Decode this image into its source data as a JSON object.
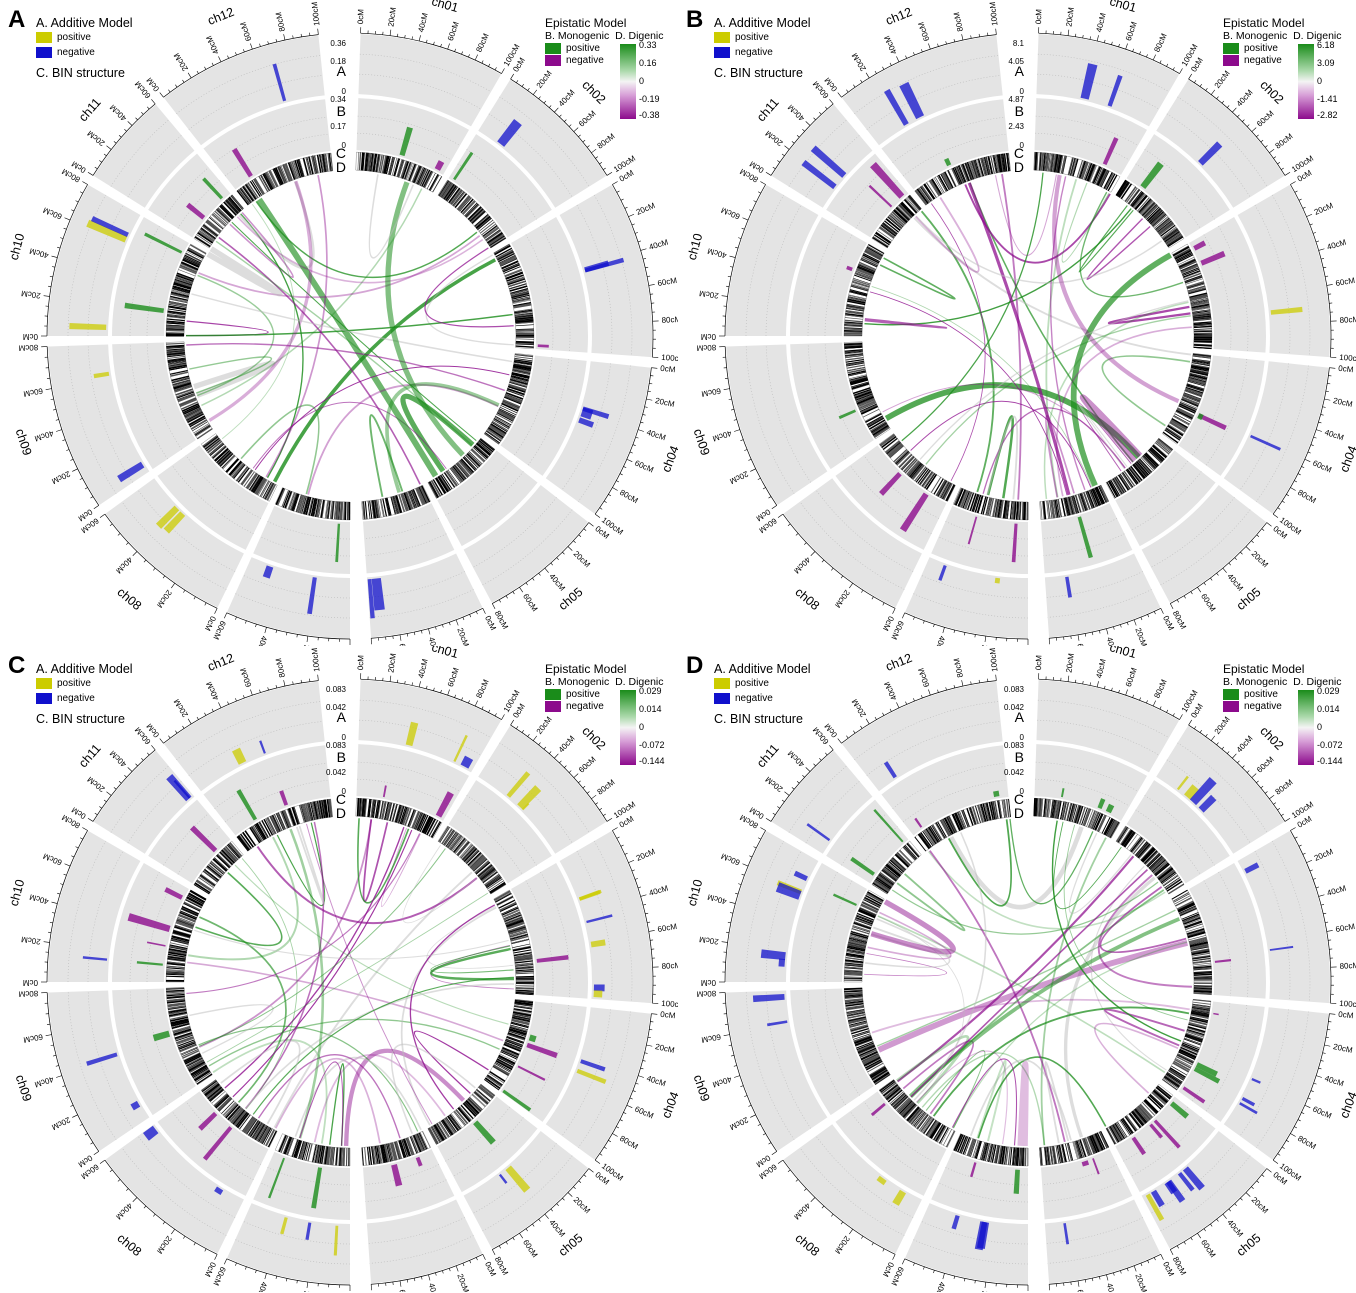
{
  "panels": [
    {
      "letter": "A",
      "track_a_max": "0.36",
      "track_a_mid": "0.18",
      "track_b_max": "0.34",
      "track_b_mid": "0.17",
      "digenic_scale": [
        "0.33",
        "0.16",
        "0",
        "-0.19",
        "-0.38"
      ]
    },
    {
      "letter": "B",
      "track_a_max": "8.1",
      "track_a_mid": "4.05",
      "track_b_max": "4.87",
      "track_b_mid": "2.43",
      "digenic_scale": [
        "6.18",
        "3.09",
        "0",
        "-1.41",
        "-2.82"
      ]
    },
    {
      "letter": "C",
      "track_a_max": "0.083",
      "track_a_mid": "0.042",
      "track_b_max": "0.083",
      "track_b_mid": "0.042",
      "digenic_scale": [
        "0.029",
        "0.014",
        "0",
        "-0.072",
        "-0.144"
      ]
    },
    {
      "letter": "D",
      "track_a_max": "0.083",
      "track_a_mid": "0.042",
      "track_b_max": "0.083",
      "track_b_mid": "0.042",
      "digenic_scale": [
        "0.029",
        "0.014",
        "0",
        "-0.072",
        "-0.144"
      ]
    }
  ],
  "legend": {
    "additive_title": "A. Additive Model",
    "positive": "positive",
    "negative": "negative",
    "bin_title": "C. BIN structure",
    "epistatic_title": "Epistatic Model",
    "monogenic": "B. Monogenic",
    "digenic": "D. Digenic"
  },
  "track_labels": [
    "A",
    "B",
    "C",
    "D"
  ],
  "zero_label": "0",
  "chromosomes": [
    {
      "name": "ch01",
      "ticks": [
        "0cM",
        "20cM",
        "40cM",
        "60cM",
        "80cM",
        "100cM"
      ]
    },
    {
      "name": "ch02",
      "ticks": [
        "0cM",
        "20cM",
        "40cM",
        "60cM",
        "80cM",
        "100cM"
      ]
    },
    {
      "name": "ch03",
      "ticks": [
        "0cM",
        "20cM",
        "40cM",
        "60cM",
        "80cM",
        "100cM"
      ]
    },
    {
      "name": "ch04",
      "ticks": [
        "0cM",
        "20cM",
        "40cM",
        "60cM",
        "80cM",
        "100cM"
      ]
    },
    {
      "name": "ch05",
      "ticks": [
        "0cM",
        "20cM",
        "40cM",
        "60cM",
        "80cM"
      ]
    },
    {
      "name": "ch06",
      "ticks": [
        "0cM",
        "20cM",
        "40cM",
        "60cM",
        "80cM"
      ]
    },
    {
      "name": "ch07",
      "ticks": [
        "0cM",
        "20cM",
        "40cM",
        "60cM"
      ]
    },
    {
      "name": "ch08",
      "ticks": [
        "0cM",
        "20cM",
        "40cM",
        "60cM"
      ]
    },
    {
      "name": "ch09",
      "ticks": [
        "0cM",
        "20cM",
        "40cM",
        "60cM",
        "80cM"
      ]
    },
    {
      "name": "ch10",
      "ticks": [
        "0cM",
        "20cM",
        "40cM",
        "60cM",
        "80cM"
      ]
    },
    {
      "name": "ch11",
      "ticks": [
        "0cM",
        "20cM",
        "40cM",
        "60cM"
      ]
    },
    {
      "name": "ch12",
      "ticks": [
        "0cM",
        "20cM",
        "40cM",
        "60cM",
        "80cM",
        "100cM"
      ]
    }
  ],
  "colors": {
    "additive_positive": "#cccc00",
    "additive_negative": "#1010cc",
    "epistatic_positive": "#1a8c1a",
    "epistatic_negative": "#8c0a8c",
    "track_bg": "#e4e4e4"
  }
}
